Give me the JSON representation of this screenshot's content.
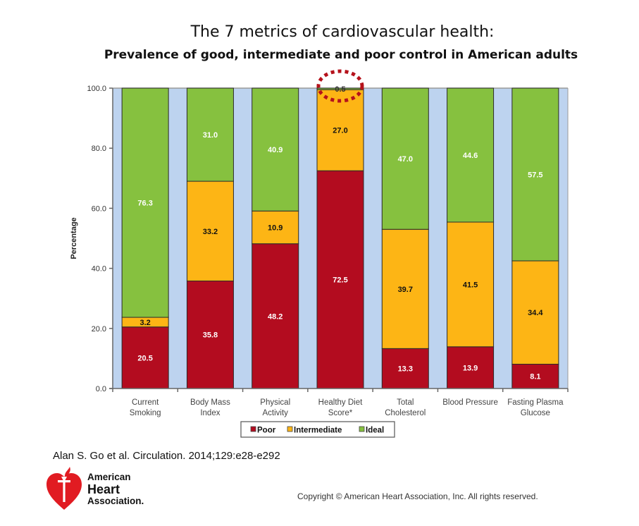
{
  "chart_data": {
    "type": "bar",
    "stacked": true,
    "title": "The 7 metrics of cardiovascular health:",
    "subtitle": "Prevalence of good, intermediate and poor control in American adults",
    "xlabel": "",
    "ylabel": "Percentage",
    "ylim": [
      0,
      100
    ],
    "yticks": [
      0,
      20,
      40,
      60,
      80,
      100
    ],
    "ytick_labels": [
      "0.0",
      "20.0",
      "40.0",
      "60.0",
      "80.0",
      "100.0"
    ],
    "grid": false,
    "plot_background": "#BDD3EF",
    "categories": [
      "Current Smoking",
      "Body Mass Index",
      "Physical Activity",
      "Healthy Diet Score*",
      "Total Cholesterol",
      "Blood Pressure",
      "Fasting Plasma Glucose"
    ],
    "category_label_lines": [
      [
        "Current",
        "Smoking"
      ],
      [
        "Body Mass",
        "Index"
      ],
      [
        "Physical",
        "Activity"
      ],
      [
        "Healthy Diet",
        "Score*"
      ],
      [
        "Total",
        "Cholesterol"
      ],
      [
        "Blood Pressure"
      ],
      [
        "Fasting Plasma",
        "Glucose"
      ]
    ],
    "series": [
      {
        "name": "Poor",
        "color": "#B30C1F",
        "label_color": "#FFFFFF",
        "values": [
          20.5,
          35.8,
          48.2,
          72.5,
          13.3,
          13.9,
          8.1
        ],
        "labels": [
          "20.5",
          "35.8",
          "48.2",
          "72.5",
          "13.3",
          "13.9",
          "8.1"
        ]
      },
      {
        "name": "Intermediate",
        "color": "#FDB515",
        "label_color": "#111111",
        "values": [
          3.2,
          33.2,
          10.9,
          27.0,
          39.7,
          41.5,
          34.4
        ],
        "labels": [
          "3.2",
          "33.2",
          "10.9",
          "27.0",
          "39.7",
          "41.5",
          "34.4"
        ]
      },
      {
        "name": "Ideal",
        "color": "#86C13F",
        "label_color": "#FFFFFF",
        "values": [
          76.3,
          31.0,
          40.9,
          0.5,
          47.0,
          44.6,
          57.5
        ],
        "labels": [
          "76.3",
          "31.0",
          "40.9",
          "0.5",
          "47.0",
          "44.6",
          "57.5"
        ]
      }
    ],
    "legend": {
      "position": "bottom",
      "entries": [
        "Poor",
        "Intermediate",
        "Ideal"
      ]
    },
    "annotation": {
      "type": "dotted-circle",
      "category": "Healthy Diet Score*",
      "series": "Ideal",
      "value": 0.5,
      "color": "#B5121B"
    }
  },
  "footer": {
    "citation": "Alan S. Go et al. Circulation. 2014;129:e28-e292",
    "logo": {
      "icon": "heart-torch-icon",
      "lines": [
        "American",
        "Heart",
        "Association."
      ]
    },
    "copyright": "Copyright © American Heart Association, Inc. All rights reserved."
  }
}
